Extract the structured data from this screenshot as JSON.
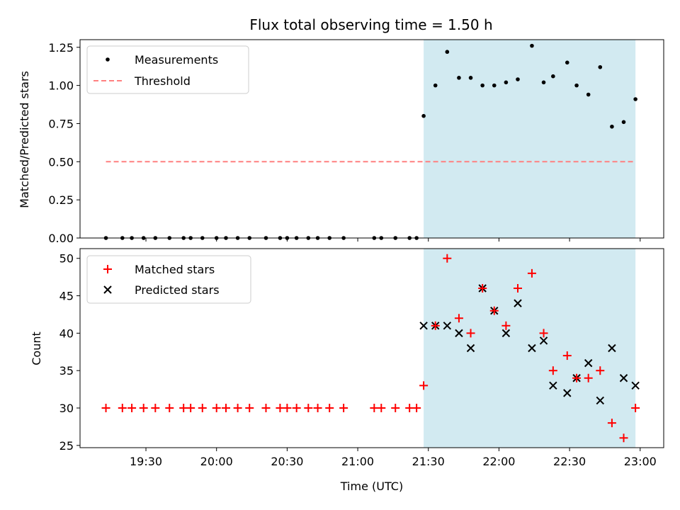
{
  "figure": {
    "title": "Flux total observing time = 1.50 h",
    "xlabel": "Time (UTC)",
    "top_ylabel": "Matched/Predicted stars",
    "bottom_ylabel": "Count"
  },
  "colors": {
    "measurement": "#000000",
    "threshold": "#ff8080",
    "shade": "#add8e6",
    "matched": "#ff0000",
    "predicted": "#000000"
  },
  "chart_data": [
    {
      "type": "scatter",
      "panel": "top",
      "x_axis": {
        "type": "time",
        "range": [
          "19:02",
          "23:10"
        ],
        "ticks": [
          "19:30",
          "20:00",
          "20:30",
          "21:00",
          "21:30",
          "22:00",
          "22:30",
          "23:00"
        ],
        "tick_labels_shown": false
      },
      "y_axis": {
        "range": [
          0,
          1.3
        ],
        "ticks": [
          "0.00",
          "0.25",
          "0.50",
          "0.75",
          "1.00",
          "1.25"
        ]
      },
      "shaded_region": [
        "21:28",
        "22:58"
      ],
      "legend": {
        "placement": "top-left",
        "entries": [
          "Measurements",
          "Threshold"
        ]
      },
      "series": [
        {
          "name": "Measurements",
          "kind": "points",
          "x": [
            "19:13",
            "19:20",
            "19:24",
            "19:29",
            "19:34",
            "19:40",
            "19:46",
            "19:49",
            "19:54",
            "20:00",
            "20:04",
            "20:09",
            "20:14",
            "20:21",
            "20:27",
            "20:30",
            "20:34",
            "20:39",
            "20:43",
            "20:48",
            "20:54",
            "21:07",
            "21:10",
            "21:16",
            "21:22",
            "21:25",
            "21:28",
            "21:33",
            "21:38",
            "21:43",
            "21:48",
            "21:53",
            "21:58",
            "22:03",
            "22:08",
            "22:14",
            "22:19",
            "22:23",
            "22:29",
            "22:33",
            "22:38",
            "22:43",
            "22:48",
            "22:53",
            "22:58"
          ],
          "y": [
            0,
            0,
            0,
            0,
            0,
            0,
            0,
            0,
            0,
            0,
            0,
            0,
            0,
            0,
            0,
            0,
            0,
            0,
            0,
            0,
            0,
            0,
            0,
            0,
            0,
            0,
            0.8,
            1.0,
            1.22,
            1.05,
            1.05,
            1.0,
            1.0,
            1.02,
            1.04,
            1.26,
            1.02,
            1.06,
            1.15,
            1.0,
            0.94,
            1.12,
            0.73,
            0.76,
            0.91
          ]
        },
        {
          "name": "Threshold",
          "kind": "dashed-line",
          "x": [
            "19:13",
            "22:58"
          ],
          "y": [
            0.5,
            0.5
          ]
        }
      ]
    },
    {
      "type": "scatter",
      "panel": "bottom",
      "x_axis": {
        "type": "time",
        "range": [
          "19:02",
          "23:10"
        ],
        "ticks": [
          "19:30",
          "20:00",
          "20:30",
          "21:00",
          "21:30",
          "22:00",
          "22:30",
          "23:00"
        ]
      },
      "y_axis": {
        "range": [
          24.7,
          51.3
        ],
        "ticks": [
          "25",
          "30",
          "35",
          "40",
          "45",
          "50"
        ]
      },
      "shaded_region": [
        "21:28",
        "22:58"
      ],
      "legend": {
        "placement": "top-left",
        "entries": [
          "Matched stars",
          "Predicted stars"
        ]
      },
      "series": [
        {
          "name": "Matched stars",
          "kind": "plus",
          "x": [
            "19:13",
            "19:20",
            "19:24",
            "19:29",
            "19:34",
            "19:40",
            "19:46",
            "19:49",
            "19:54",
            "20:00",
            "20:04",
            "20:09",
            "20:14",
            "20:21",
            "20:27",
            "20:30",
            "20:34",
            "20:39",
            "20:43",
            "20:48",
            "20:54",
            "21:07",
            "21:10",
            "21:16",
            "21:22",
            "21:25",
            "21:28",
            "21:33",
            "21:38",
            "21:43",
            "21:48",
            "21:53",
            "21:58",
            "22:03",
            "22:08",
            "22:14",
            "22:19",
            "22:23",
            "22:29",
            "22:33",
            "22:38",
            "22:43",
            "22:48",
            "22:53",
            "22:58"
          ],
          "y": [
            30,
            30,
            30,
            30,
            30,
            30,
            30,
            30,
            30,
            30,
            30,
            30,
            30,
            30,
            30,
            30,
            30,
            30,
            30,
            30,
            30,
            30,
            30,
            30,
            30,
            30,
            33,
            41,
            50,
            42,
            40,
            46,
            43,
            41,
            46,
            48,
            40,
            35,
            37,
            34,
            34,
            35,
            28,
            26,
            30
          ]
        },
        {
          "name": "Predicted stars",
          "kind": "x",
          "x": [
            "21:28",
            "21:33",
            "21:38",
            "21:43",
            "21:48",
            "21:53",
            "21:58",
            "22:03",
            "22:08",
            "22:14",
            "22:19",
            "22:23",
            "22:29",
            "22:33",
            "22:38",
            "22:43",
            "22:48",
            "22:53",
            "22:58"
          ],
          "y": [
            41,
            41,
            41,
            40,
            38,
            46,
            43,
            40,
            44,
            38,
            39,
            33,
            32,
            34,
            36,
            31,
            38,
            34,
            33
          ]
        }
      ]
    }
  ]
}
